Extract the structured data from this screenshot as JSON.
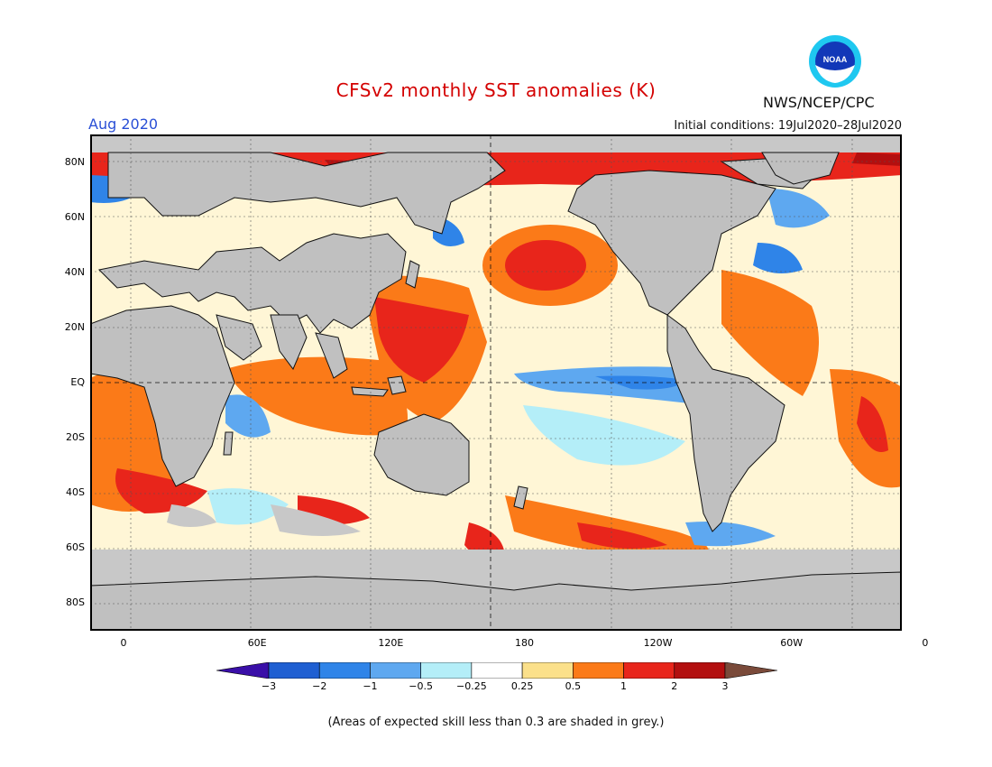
{
  "title": "CFSv2 monthly SST anomalies (K)",
  "valid_month": "Aug 2020",
  "agency": "NWS/NCEP/CPC",
  "initial_conditions": "Initial conditions: 19Jul2020–28Jul2020",
  "logo": {
    "text": "NOAA",
    "icon": "noaa-logo-icon"
  },
  "axes": {
    "lat_ticks": [
      "80N",
      "60N",
      "40N",
      "20N",
      "EQ",
      "20S",
      "40S",
      "60S",
      "80S"
    ],
    "lon_ticks": [
      "0",
      "60E",
      "120E",
      "180",
      "120W",
      "60W",
      "0"
    ]
  },
  "colorbar": {
    "labels": [
      "−3",
      "−2",
      "−1",
      "−0.5",
      "−0.25",
      "0.25",
      "0.5",
      "1",
      "2",
      "3"
    ],
    "colors": [
      "#3a0fa8",
      "#1f5fd2",
      "#2f84e8",
      "#5ea8f0",
      "#b4eef8",
      "#ffffff",
      "#fbe08a",
      "#fb7a18",
      "#e8251b",
      "#b30f0f",
      "#7a4a3a"
    ],
    "grey_mask_color": "#c8c8c8",
    "land_color": "#c0c0c0"
  },
  "footnote": "(Areas of expected skill less than 0.3 are shaded in grey.)"
}
